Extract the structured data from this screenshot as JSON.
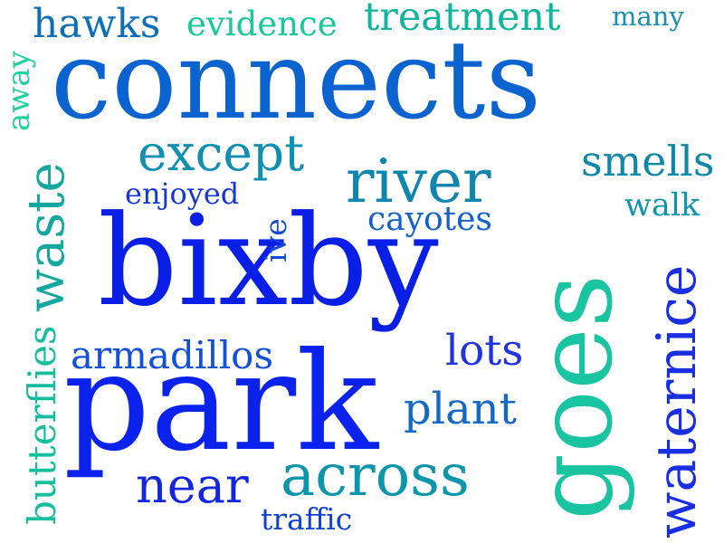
{
  "words": [
    {
      "id": "connects",
      "text": "connects",
      "color": "#0a63cf"
    },
    {
      "id": "bixby",
      "text": "bixby",
      "color": "#0a1fe6"
    },
    {
      "id": "park",
      "text": "park",
      "color": "#0a22ec"
    },
    {
      "id": "hawks",
      "text": "hawks",
      "color": "#0e6fb8"
    },
    {
      "id": "evidence",
      "text": "evidence",
      "color": "#18c99a"
    },
    {
      "id": "treatment",
      "text": "treatment",
      "color": "#11b59c"
    },
    {
      "id": "many",
      "text": "many",
      "color": "#1a8fb6"
    },
    {
      "id": "except",
      "text": "except",
      "color": "#0f8fb1"
    },
    {
      "id": "river",
      "text": "river",
      "color": "#0f86ad"
    },
    {
      "id": "smells",
      "text": "smells",
      "color": "#0f88a9"
    },
    {
      "id": "enjoyed",
      "text": "enjoyed",
      "color": "#1637d8"
    },
    {
      "id": "walk",
      "text": "walk",
      "color": "#0f96ad"
    },
    {
      "id": "cayotes",
      "text": "cayotes",
      "color": "#1460cc"
    },
    {
      "id": "armadillos",
      "text": "armadillos",
      "color": "#1451d8"
    },
    {
      "id": "lots",
      "text": "lots",
      "color": "#1f33e0"
    },
    {
      "id": "plant",
      "text": "plant",
      "color": "#1569c6"
    },
    {
      "id": "near",
      "text": "near",
      "color": "#1426dd"
    },
    {
      "id": "across",
      "text": "across",
      "color": "#0d95ab"
    },
    {
      "id": "traffic",
      "text": "traffic",
      "color": "#1340d4"
    },
    {
      "id": "away",
      "text": "away",
      "color": "#20d29d"
    },
    {
      "id": "waste",
      "text": "waste",
      "color": "#12a79f"
    },
    {
      "id": "ive",
      "text": "ive",
      "color": "#1548d6"
    },
    {
      "id": "butterflies",
      "text": "butterflies",
      "color": "#15bf9d"
    },
    {
      "id": "goes",
      "text": "goes",
      "color": "#19c5a0"
    },
    {
      "id": "waternice",
      "text": "waternice",
      "color": "#1a2fe2"
    }
  ]
}
